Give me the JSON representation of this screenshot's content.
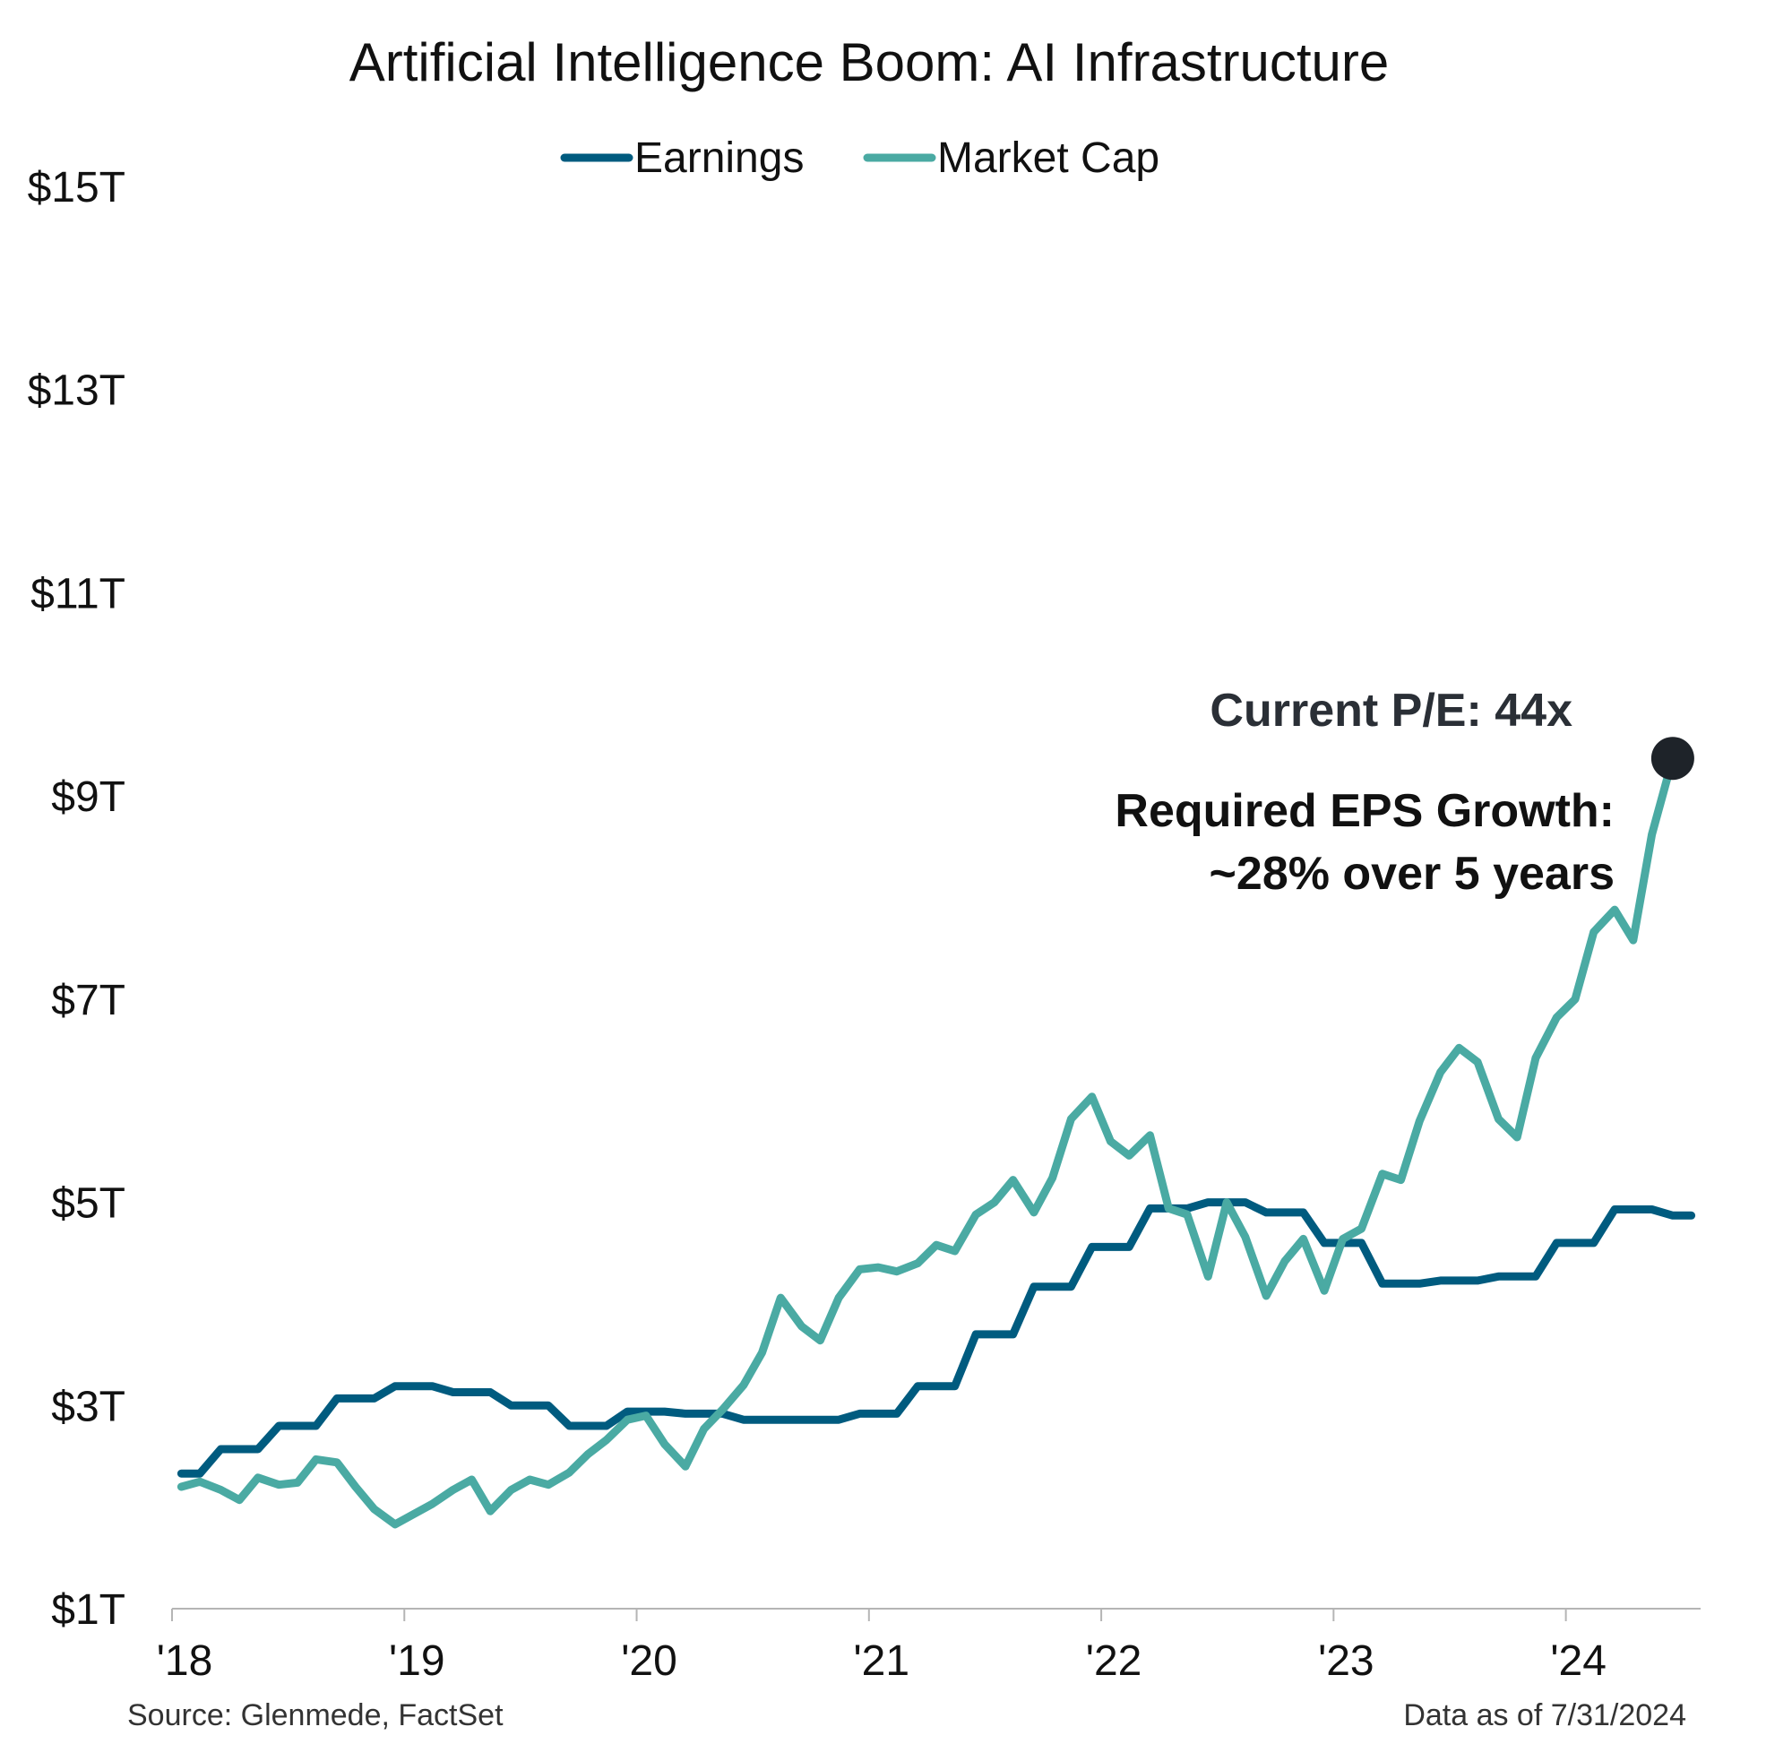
{
  "chart_data": {
    "type": "line",
    "title": "Artificial Intelligence Boom: AI Infrastructure",
    "xlabel": "",
    "ylabel": "",
    "ylim": [
      1,
      15
    ],
    "y_ticks": [
      1,
      3,
      5,
      7,
      9,
      11,
      13,
      15
    ],
    "y_tick_labels": [
      "$1T",
      "$3T",
      "$5T",
      "$7T",
      "$9T",
      "$11T",
      "$13T",
      "$15T"
    ],
    "x_ticks": [
      2018,
      2019,
      2020,
      2021,
      2022,
      2023,
      2024
    ],
    "x_tick_labels": [
      "'18",
      "'19",
      "'20",
      "'21",
      "'22",
      "'23",
      "'24"
    ],
    "xlim": [
      2018,
      2024.58
    ],
    "grid": false,
    "legend_position": "top-center",
    "series": [
      {
        "name": "Earnings",
        "color": "#005b7f",
        "points": [
          [
            2018.04,
            2.33
          ],
          [
            2018.12,
            2.33
          ],
          [
            2018.21,
            2.57
          ],
          [
            2018.37,
            2.57
          ],
          [
            2018.46,
            2.8
          ],
          [
            2018.62,
            2.8
          ],
          [
            2018.71,
            3.07
          ],
          [
            2018.87,
            3.07
          ],
          [
            2018.96,
            3.19
          ],
          [
            2019.12,
            3.19
          ],
          [
            2019.21,
            3.13
          ],
          [
            2019.37,
            3.13
          ],
          [
            2019.46,
            3.0
          ],
          [
            2019.62,
            3.0
          ],
          [
            2019.71,
            2.8
          ],
          [
            2019.87,
            2.8
          ],
          [
            2019.96,
            2.94
          ],
          [
            2020.12,
            2.94
          ],
          [
            2020.21,
            2.92
          ],
          [
            2020.37,
            2.92
          ],
          [
            2020.46,
            2.86
          ],
          [
            2020.87,
            2.86
          ],
          [
            2020.96,
            2.92
          ],
          [
            2021.12,
            2.92
          ],
          [
            2021.21,
            3.19
          ],
          [
            2021.37,
            3.19
          ],
          [
            2021.46,
            3.7
          ],
          [
            2021.62,
            3.7
          ],
          [
            2021.71,
            4.17
          ],
          [
            2021.87,
            4.17
          ],
          [
            2021.96,
            4.56
          ],
          [
            2022.12,
            4.56
          ],
          [
            2022.21,
            4.94
          ],
          [
            2022.37,
            4.94
          ],
          [
            2022.46,
            5.0
          ],
          [
            2022.62,
            5.0
          ],
          [
            2022.71,
            4.9
          ],
          [
            2022.87,
            4.9
          ],
          [
            2022.96,
            4.6
          ],
          [
            2023.12,
            4.6
          ],
          [
            2023.21,
            4.2
          ],
          [
            2023.37,
            4.2
          ],
          [
            2023.46,
            4.23
          ],
          [
            2023.62,
            4.23
          ],
          [
            2023.71,
            4.27
          ],
          [
            2023.87,
            4.27
          ],
          [
            2023.96,
            4.6
          ],
          [
            2024.12,
            4.6
          ],
          [
            2024.21,
            4.93
          ],
          [
            2024.37,
            4.93
          ],
          [
            2024.46,
            4.87
          ],
          [
            2024.54,
            4.87
          ]
        ]
      },
      {
        "name": "Market Cap",
        "color": "#4aaaa3",
        "points": [
          [
            2018.04,
            2.2
          ],
          [
            2018.12,
            2.25
          ],
          [
            2018.21,
            2.17
          ],
          [
            2018.29,
            2.07
          ],
          [
            2018.37,
            2.29
          ],
          [
            2018.46,
            2.22
          ],
          [
            2018.54,
            2.24
          ],
          [
            2018.62,
            2.47
          ],
          [
            2018.71,
            2.44
          ],
          [
            2018.79,
            2.2
          ],
          [
            2018.87,
            1.98
          ],
          [
            2018.96,
            1.83
          ],
          [
            2019.04,
            1.93
          ],
          [
            2019.12,
            2.03
          ],
          [
            2019.21,
            2.17
          ],
          [
            2019.29,
            2.27
          ],
          [
            2019.37,
            1.96
          ],
          [
            2019.46,
            2.17
          ],
          [
            2019.54,
            2.27
          ],
          [
            2019.62,
            2.22
          ],
          [
            2019.71,
            2.34
          ],
          [
            2019.79,
            2.52
          ],
          [
            2019.87,
            2.66
          ],
          [
            2019.96,
            2.86
          ],
          [
            2020.04,
            2.9
          ],
          [
            2020.12,
            2.62
          ],
          [
            2020.21,
            2.4
          ],
          [
            2020.29,
            2.77
          ],
          [
            2020.37,
            2.96
          ],
          [
            2020.46,
            3.2
          ],
          [
            2020.54,
            3.52
          ],
          [
            2020.62,
            4.06
          ],
          [
            2020.71,
            3.78
          ],
          [
            2020.79,
            3.64
          ],
          [
            2020.87,
            4.06
          ],
          [
            2020.96,
            4.34
          ],
          [
            2021.04,
            4.36
          ],
          [
            2021.12,
            4.32
          ],
          [
            2021.21,
            4.4
          ],
          [
            2021.29,
            4.58
          ],
          [
            2021.37,
            4.52
          ],
          [
            2021.46,
            4.88
          ],
          [
            2021.54,
            5.0
          ],
          [
            2021.62,
            5.22
          ],
          [
            2021.71,
            4.9
          ],
          [
            2021.79,
            5.24
          ],
          [
            2021.87,
            5.82
          ],
          [
            2021.96,
            6.04
          ],
          [
            2022.04,
            5.6
          ],
          [
            2022.12,
            5.46
          ],
          [
            2022.21,
            5.66
          ],
          [
            2022.29,
            4.94
          ],
          [
            2022.37,
            4.88
          ],
          [
            2022.46,
            4.27
          ],
          [
            2022.54,
            5.0
          ],
          [
            2022.62,
            4.66
          ],
          [
            2022.71,
            4.08
          ],
          [
            2022.79,
            4.42
          ],
          [
            2022.87,
            4.64
          ],
          [
            2022.96,
            4.13
          ],
          [
            2023.04,
            4.64
          ],
          [
            2023.12,
            4.74
          ],
          [
            2023.21,
            5.28
          ],
          [
            2023.29,
            5.22
          ],
          [
            2023.37,
            5.8
          ],
          [
            2023.46,
            6.28
          ],
          [
            2023.54,
            6.52
          ],
          [
            2023.62,
            6.38
          ],
          [
            2023.71,
            5.82
          ],
          [
            2023.79,
            5.64
          ],
          [
            2023.87,
            6.42
          ],
          [
            2023.96,
            6.82
          ],
          [
            2024.04,
            7.0
          ],
          [
            2024.12,
            7.66
          ],
          [
            2024.21,
            7.88
          ],
          [
            2024.29,
            7.58
          ],
          [
            2024.37,
            8.62
          ],
          [
            2024.46,
            9.37
          ]
        ]
      }
    ],
    "marker": {
      "x": 2024.46,
      "y": 9.37,
      "color": "#1e2329"
    },
    "annotations": {
      "pe": "Current P/E: 44x",
      "eps_line1": "Required EPS Growth:",
      "eps_line2": "~28% over 5 years"
    }
  },
  "footer": {
    "source": "Source: Glenmede, FactSet",
    "date": "Data as of 7/31/2024"
  }
}
